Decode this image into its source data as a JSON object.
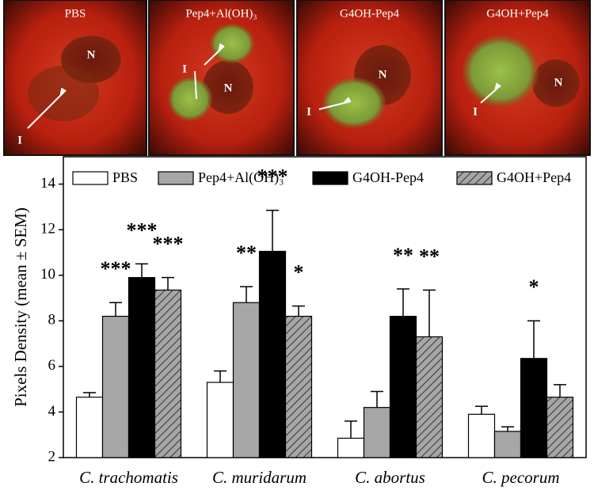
{
  "image_panels": [
    {
      "label": "PBS",
      "marks": [
        "N",
        "I"
      ]
    },
    {
      "label": "Pep4+Al(OH)₃",
      "marks": [
        "I",
        "N"
      ]
    },
    {
      "label": "G4OH-Pep4",
      "marks": [
        "N",
        "I"
      ]
    },
    {
      "label": "G4OH+Pep4",
      "marks": [
        "I",
        "N"
      ]
    }
  ],
  "chart_data": {
    "type": "bar",
    "ylabel": "Pixels Density (mean ± SEM)",
    "categories": [
      "C. trachomatis",
      "C. muridarum",
      "C. abortus",
      "C. pecorum"
    ],
    "series": [
      {
        "name": "PBS",
        "color": "#ffffff",
        "values": [
          4.65,
          5.3,
          2.85,
          3.9
        ],
        "errors": [
          0.2,
          0.5,
          0.75,
          0.35
        ],
        "annotations": [
          null,
          null,
          null,
          null
        ]
      },
      {
        "name": "Pep4+Al(OH)₃",
        "color": "#a6a6a6",
        "values": [
          8.2,
          8.8,
          4.2,
          3.15
        ],
        "errors": [
          0.6,
          0.7,
          0.7,
          0.2
        ],
        "annotations": [
          "***",
          "**",
          null,
          null
        ]
      },
      {
        "name": "G4OH-Pep4",
        "color": "#000000",
        "values": [
          9.9,
          11.05,
          8.2,
          6.35
        ],
        "errors": [
          0.6,
          1.8,
          1.2,
          1.65
        ],
        "annotations": [
          "***",
          "***",
          "**",
          "*"
        ]
      },
      {
        "name": "G4OH+Pep4",
        "color": "#a6a6a6",
        "pattern": "hatch",
        "values": [
          9.35,
          8.2,
          7.3,
          4.65
        ],
        "errors": [
          0.55,
          0.45,
          2.05,
          0.55
        ],
        "annotations": [
          "***",
          "*",
          "**",
          null
        ]
      }
    ],
    "ylim": [
      2,
      15.2
    ],
    "yticks": [
      2,
      4,
      6,
      8,
      10,
      12,
      14
    ],
    "legend": "top"
  }
}
